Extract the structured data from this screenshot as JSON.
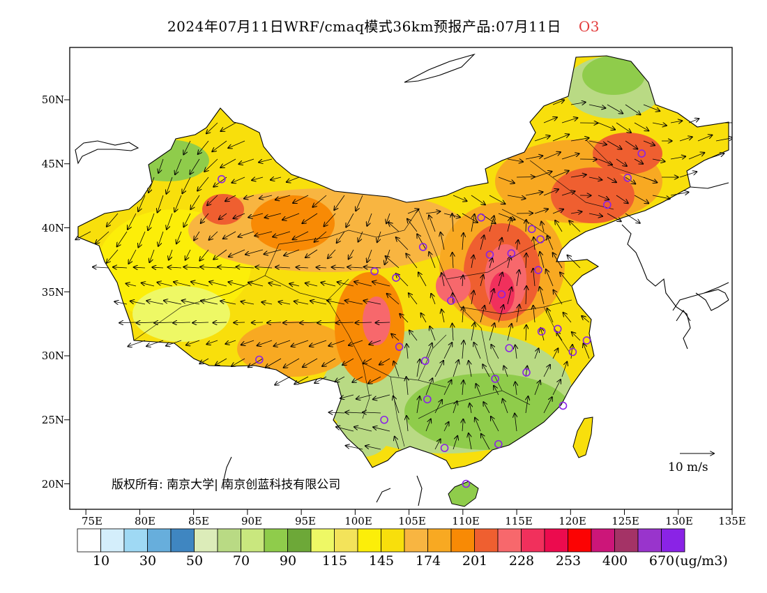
{
  "title": {
    "main": "2024年07月11日WRF/cmaq模式36km预报产品:07月11日",
    "variable": "O3"
  },
  "axes": {
    "lat_labels": [
      "50N",
      "45N",
      "40N",
      "35N",
      "30N",
      "25N",
      "20N"
    ],
    "lon_labels": [
      "75E",
      "80E",
      "85E",
      "90E",
      "95E",
      "100E",
      "105E",
      "110E",
      "115E",
      "120E",
      "125E",
      "130E",
      "135E"
    ]
  },
  "copyright": "版权所有: 南京大学| 南京创蓝科技有限公司",
  "wind_reference": {
    "label": "10 m/s",
    "speed_ms": 10
  },
  "colorbar": {
    "colors": [
      "#ffffff",
      "#d4eefb",
      "#9fd9f4",
      "#67aedc",
      "#3f86c1",
      "#dcecb9",
      "#b9da84",
      "#c9e77e",
      "#8fcc4b",
      "#6da838",
      "#eef865",
      "#f3e35a",
      "#fcee09",
      "#f8df0c",
      "#f8b541",
      "#f8a922",
      "#f88a05",
      "#ef5f30",
      "#f7686c",
      "#f1305c",
      "#ec0b4e",
      "#fc0303",
      "#cc1679",
      "#a43366",
      "#9934cc",
      "#8a23e6"
    ],
    "tick_labels": [
      "10",
      "30",
      "50",
      "70",
      "90",
      "115",
      "145",
      "174",
      "201",
      "228",
      "253",
      "400",
      "670"
    ],
    "unit": "(ug/m3)"
  },
  "cities": [
    {
      "lon": 87.6,
      "lat": 43.8
    },
    {
      "lon": 91.1,
      "lat": 29.7
    },
    {
      "lon": 101.8,
      "lat": 36.6
    },
    {
      "lon": 103.8,
      "lat": 36.1
    },
    {
      "lon": 106.3,
      "lat": 38.5
    },
    {
      "lon": 111.7,
      "lat": 40.8
    },
    {
      "lon": 112.5,
      "lat": 37.9
    },
    {
      "lon": 114.5,
      "lat": 38.0
    },
    {
      "lon": 116.4,
      "lat": 39.9
    },
    {
      "lon": 117.2,
      "lat": 39.1
    },
    {
      "lon": 117.0,
      "lat": 36.7
    },
    {
      "lon": 113.6,
      "lat": 34.8
    },
    {
      "lon": 108.9,
      "lat": 34.3
    },
    {
      "lon": 104.1,
      "lat": 30.7
    },
    {
      "lon": 106.5,
      "lat": 29.6
    },
    {
      "lon": 114.3,
      "lat": 30.6
    },
    {
      "lon": 113.0,
      "lat": 28.2
    },
    {
      "lon": 115.9,
      "lat": 28.7
    },
    {
      "lon": 117.3,
      "lat": 31.9
    },
    {
      "lon": 118.8,
      "lat": 32.1
    },
    {
      "lon": 120.2,
      "lat": 30.3
    },
    {
      "lon": 121.5,
      "lat": 31.2
    },
    {
      "lon": 119.3,
      "lat": 26.1
    },
    {
      "lon": 113.3,
      "lat": 23.1
    },
    {
      "lon": 108.3,
      "lat": 22.8
    },
    {
      "lon": 110.3,
      "lat": 20.0
    },
    {
      "lon": 102.7,
      "lat": 25.0
    },
    {
      "lon": 106.7,
      "lat": 26.6
    },
    {
      "lon": 123.4,
      "lat": 41.8
    },
    {
      "lon": 125.3,
      "lat": 43.9
    },
    {
      "lon": 126.6,
      "lat": 45.8
    }
  ]
}
